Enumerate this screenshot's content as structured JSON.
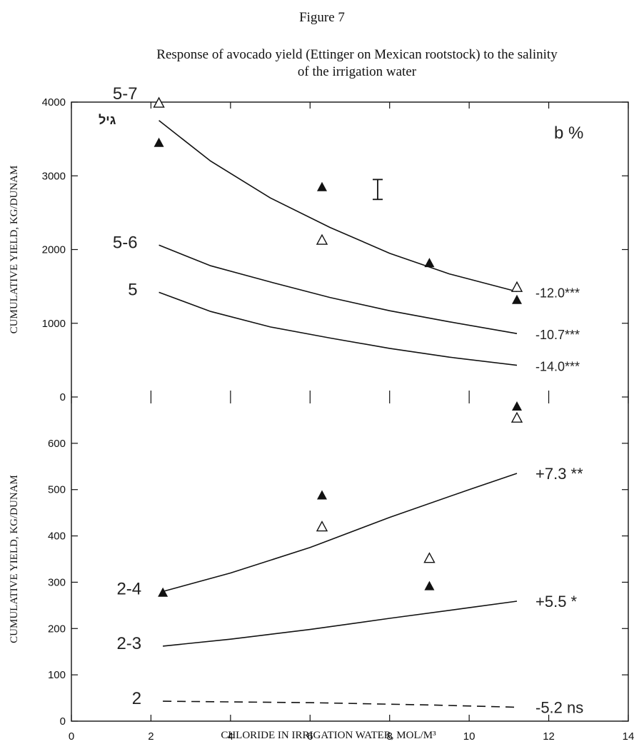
{
  "figure_heading": "Figure 7",
  "title_line1": "Response of avocado yield (Ettinger on Mexican rootstock) to the salinity",
  "title_line2": "of the irrigation water",
  "chart_data": {
    "type": "line",
    "xlabel": "CHLORIDE IN IRRIGATION WATER, MOL/M³",
    "xlim": [
      0,
      14
    ],
    "x_ticks": [
      0,
      2,
      4,
      6,
      8,
      10,
      12,
      14
    ],
    "panels": [
      {
        "id": "upper",
        "ylabel": "CUMULATIVE YIELD, KG/DUNAM",
        "ylim": [
          0,
          4000
        ],
        "y_ticks": [
          0,
          1000,
          2000,
          3000,
          4000
        ],
        "header_label": "גיל",
        "corner_label": "b   %",
        "curves": [
          {
            "name": "5-7",
            "x": [
              2.2,
              3.5,
              5,
              6.5,
              8,
              9.5,
              11.2
            ],
            "y": [
              3750,
              3200,
              2700,
              2300,
              1950,
              1670,
              1430
            ],
            "annotation": "-12.0***",
            "style": "solid"
          },
          {
            "name": "5-6",
            "x": [
              2.2,
              3.5,
              5,
              6.5,
              8,
              9.5,
              11.2
            ],
            "y": [
              2060,
              1780,
              1560,
              1350,
              1170,
              1020,
              860
            ],
            "annotation": "-10.7***",
            "style": "solid"
          },
          {
            "name": "5",
            "x": [
              2.2,
              3.5,
              5,
              6.5,
              8,
              9.5,
              11.2
            ],
            "y": [
              1420,
              1160,
              950,
              800,
              660,
              540,
              430
            ],
            "annotation": "-14.0***",
            "style": "solid"
          }
        ],
        "points": {
          "filled": [
            {
              "x": 2.2,
              "y": 3450
            },
            {
              "x": 6.3,
              "y": 2850
            },
            {
              "x": 9.0,
              "y": 1820
            },
            {
              "x": 11.2,
              "y": 1320
            }
          ],
          "open": [
            {
              "x": 2.2,
              "y": 3990
            },
            {
              "x": 6.3,
              "y": 2130
            },
            {
              "x": 11.2,
              "y": 1490
            }
          ]
        },
        "error_bar": {
          "x": 7.7,
          "y_low": 2680,
          "y_high": 2950
        }
      },
      {
        "id": "lower",
        "ylabel": "CUMULATIVE YIELD, KG/DUNAM",
        "ylim": [
          0,
          700
        ],
        "y_ticks": [
          0,
          100,
          200,
          300,
          400,
          500,
          600
        ],
        "curves": [
          {
            "name": "2-4",
            "x": [
              2.3,
              4,
              6,
              8,
              10,
              11.2
            ],
            "y": [
              280,
              320,
              375,
              440,
              500,
              535
            ],
            "annotation": "+7.3  **",
            "style": "solid"
          },
          {
            "name": "2-3",
            "x": [
              2.3,
              4,
              6,
              8,
              10,
              11.2
            ],
            "y": [
              162,
              177,
              198,
              222,
              245,
              259
            ],
            "annotation": "+5.5  *",
            "style": "solid"
          },
          {
            "name": "2",
            "x": [
              2.3,
              6,
              9,
              11.2
            ],
            "y": [
              43,
              40,
              35,
              30
            ],
            "annotation": "-5.2  ns",
            "style": "dashed"
          }
        ],
        "points": {
          "filled": [
            {
              "x": 2.3,
              "y": 278
            },
            {
              "x": 6.3,
              "y": 488
            },
            {
              "x": 9.0,
              "y": 292
            },
            {
              "x": 11.2,
              "y": 680
            }
          ],
          "open": [
            {
              "x": 6.3,
              "y": 420
            },
            {
              "x": 9.0,
              "y": 352
            },
            {
              "x": 11.2,
              "y": 655
            }
          ]
        }
      }
    ]
  }
}
